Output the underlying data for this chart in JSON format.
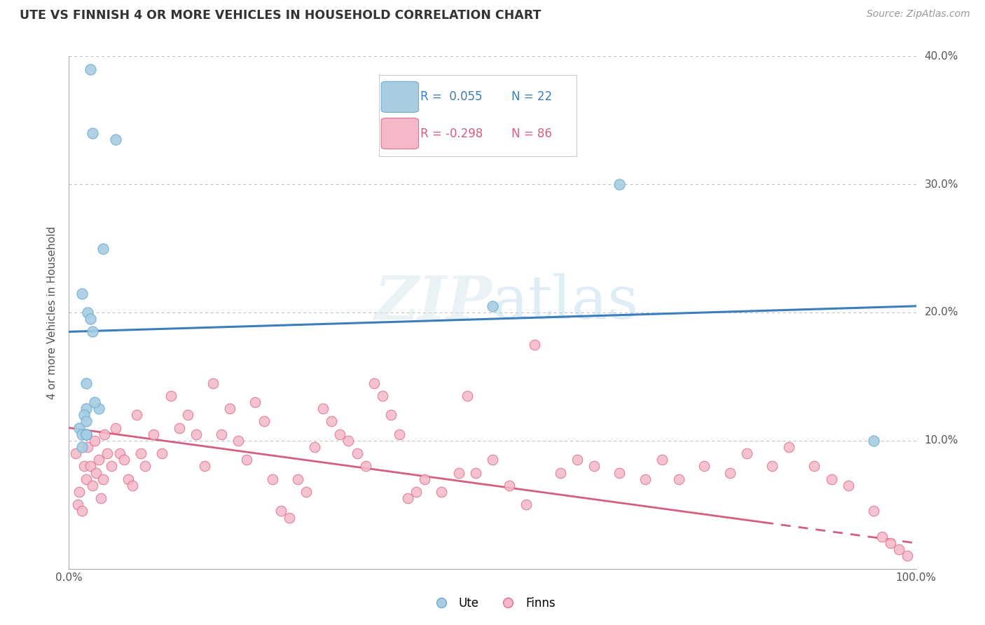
{
  "title": "UTE VS FINNISH 4 OR MORE VEHICLES IN HOUSEHOLD CORRELATION CHART",
  "source": "Source: ZipAtlas.com",
  "ylabel": "4 or more Vehicles in Household",
  "watermark_zip": "ZIP",
  "watermark_atlas": "atlas",
  "xlim": [
    0,
    100
  ],
  "ylim": [
    0,
    40
  ],
  "legend_ute_R": " 0.055",
  "legend_ute_N": "22",
  "legend_finn_R": "-0.298",
  "legend_finn_N": "86",
  "ute_color": "#a8cce0",
  "ute_edge_color": "#6baed6",
  "finn_color": "#f4b8c8",
  "finn_edge_color": "#e07090",
  "line_ute_color": "#3a7ebf",
  "line_finn_color": "#d45f80",
  "background": "#ffffff",
  "grid_color": "#bbbbbb",
  "ute_line_start_y": 18.5,
  "ute_line_end_y": 20.5,
  "finn_line_start_y": 11.0,
  "finn_line_end_y": 2.0,
  "finn_dash_start_x": 82,
  "ute_scatter_x": [
    2.5,
    2.8,
    5.5,
    1.5,
    2.2,
    4.0,
    2.5,
    2.0,
    2.0,
    1.8,
    3.5,
    1.2,
    1.5,
    2.0,
    2.8,
    50.0,
    2.0,
    1.5,
    65.0,
    95.0,
    3.0,
    2.0
  ],
  "ute_scatter_y": [
    39.0,
    34.0,
    33.5,
    21.5,
    20.0,
    25.0,
    19.5,
    14.5,
    12.5,
    12.0,
    12.5,
    11.0,
    10.5,
    10.5,
    18.5,
    20.5,
    10.5,
    9.5,
    30.0,
    10.0,
    13.0,
    11.5
  ],
  "finn_scatter_x": [
    0.8,
    1.0,
    1.2,
    1.5,
    1.8,
    2.0,
    2.2,
    2.5,
    2.8,
    3.0,
    3.2,
    3.5,
    3.8,
    4.0,
    4.2,
    4.5,
    5.0,
    5.5,
    6.0,
    6.5,
    7.0,
    7.5,
    8.0,
    8.5,
    9.0,
    10.0,
    11.0,
    12.0,
    13.0,
    14.0,
    15.0,
    16.0,
    17.0,
    18.0,
    19.0,
    20.0,
    21.0,
    22.0,
    23.0,
    24.0,
    25.0,
    26.0,
    27.0,
    28.0,
    29.0,
    30.0,
    31.0,
    32.0,
    33.0,
    34.0,
    35.0,
    36.0,
    37.0,
    38.0,
    39.0,
    40.0,
    41.0,
    42.0,
    44.0,
    46.0,
    47.0,
    48.0,
    50.0,
    52.0,
    54.0,
    55.0,
    58.0,
    60.0,
    62.0,
    65.0,
    68.0,
    70.0,
    72.0,
    75.0,
    78.0,
    80.0,
    83.0,
    85.0,
    88.0,
    90.0,
    92.0,
    95.0,
    96.0,
    97.0,
    98.0,
    99.0
  ],
  "finn_scatter_y": [
    9.0,
    5.0,
    6.0,
    4.5,
    8.0,
    7.0,
    9.5,
    8.0,
    6.5,
    10.0,
    7.5,
    8.5,
    5.5,
    7.0,
    10.5,
    9.0,
    8.0,
    11.0,
    9.0,
    8.5,
    7.0,
    6.5,
    12.0,
    9.0,
    8.0,
    10.5,
    9.0,
    13.5,
    11.0,
    12.0,
    10.5,
    8.0,
    14.5,
    10.5,
    12.5,
    10.0,
    8.5,
    13.0,
    11.5,
    7.0,
    4.5,
    4.0,
    7.0,
    6.0,
    9.5,
    12.5,
    11.5,
    10.5,
    10.0,
    9.0,
    8.0,
    14.5,
    13.5,
    12.0,
    10.5,
    5.5,
    6.0,
    7.0,
    6.0,
    7.5,
    13.5,
    7.5,
    8.5,
    6.5,
    5.0,
    17.5,
    7.5,
    8.5,
    8.0,
    7.5,
    7.0,
    8.5,
    7.0,
    8.0,
    7.5,
    9.0,
    8.0,
    9.5,
    8.0,
    7.0,
    6.5,
    4.5,
    2.5,
    2.0,
    1.5,
    1.0
  ]
}
